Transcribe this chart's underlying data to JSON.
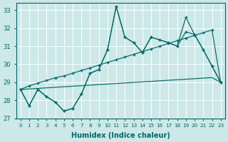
{
  "xlabel": "Humidex (Indice chaleur)",
  "xlim": [
    -0.5,
    23.5
  ],
  "ylim": [
    27.0,
    33.4
  ],
  "yticks": [
    27,
    28,
    29,
    30,
    31,
    32,
    33
  ],
  "xticks": [
    0,
    1,
    2,
    3,
    4,
    5,
    6,
    7,
    8,
    9,
    10,
    11,
    12,
    13,
    14,
    15,
    16,
    17,
    18,
    19,
    20,
    21,
    22,
    23
  ],
  "bg_color": "#cce8e8",
  "grid_color": "#ffffff",
  "line_color": "#006868",
  "series1": [
    28.6,
    27.7,
    28.6,
    28.2,
    27.9,
    27.4,
    27.55,
    28.35,
    29.5,
    29.7,
    30.8,
    33.2,
    31.5,
    31.2,
    30.65,
    31.5,
    31.35,
    31.2,
    31.0,
    31.8,
    31.65,
    30.8,
    29.9,
    29.0
  ],
  "series2": [
    28.6,
    27.7,
    28.6,
    28.2,
    27.9,
    27.4,
    27.55,
    28.35,
    29.5,
    29.7,
    30.8,
    33.2,
    31.5,
    31.2,
    30.65,
    31.5,
    31.35,
    31.2,
    31.0,
    32.6,
    31.65,
    30.8,
    29.9,
    29.0
  ],
  "series_diag": [
    28.6,
    28.8,
    28.95,
    29.1,
    29.25,
    29.35,
    29.5,
    29.65,
    29.8,
    29.95,
    30.1,
    30.25,
    30.4,
    30.55,
    30.7,
    30.85,
    31.0,
    31.15,
    31.3,
    31.45,
    31.6,
    31.75,
    31.9,
    29.0
  ],
  "series_flat": [
    28.6,
    28.63,
    28.66,
    28.69,
    28.72,
    28.75,
    28.78,
    28.81,
    28.84,
    28.87,
    28.9,
    28.93,
    28.96,
    28.99,
    29.02,
    29.05,
    29.08,
    29.11,
    29.14,
    29.17,
    29.2,
    29.23,
    29.26,
    29.0
  ]
}
